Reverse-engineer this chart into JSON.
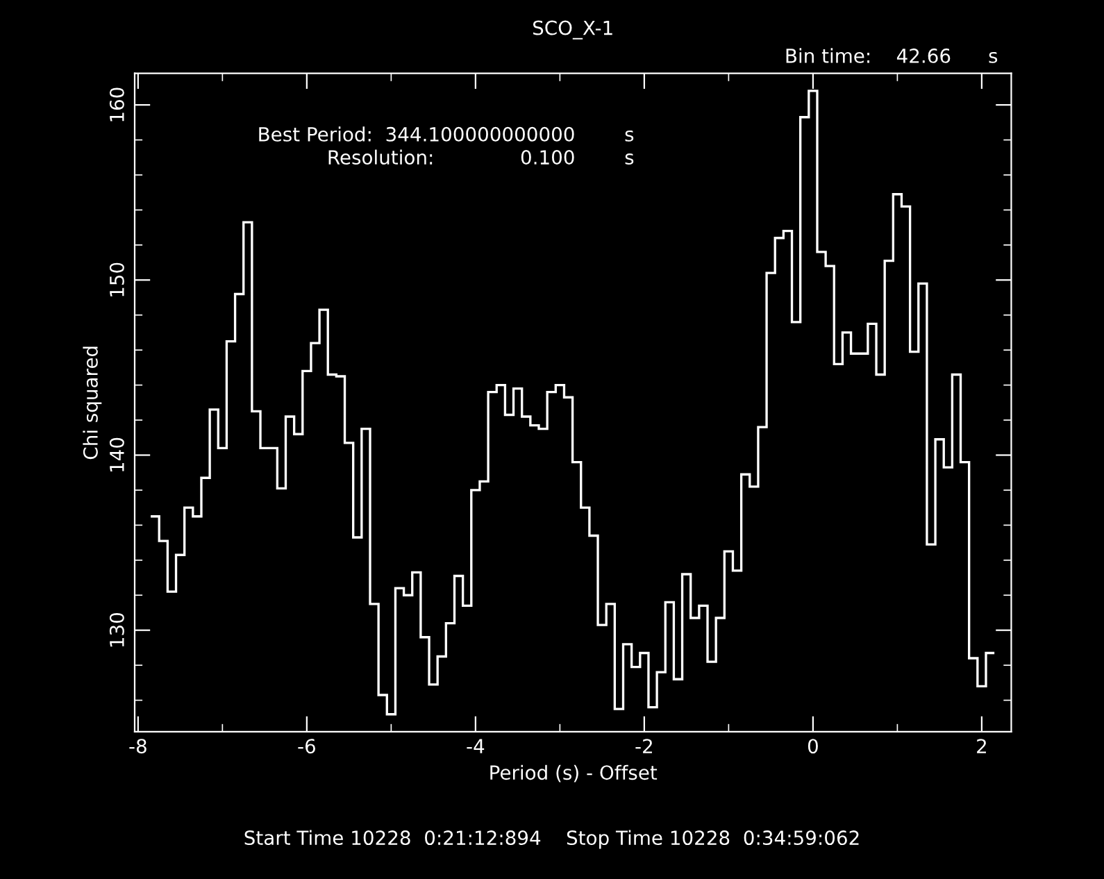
{
  "chart_data": {
    "type": "histogram",
    "title": "SCO_X-1",
    "xlabel": "Period (s) - Offset",
    "ylabel": "Chi squared",
    "annotations": [
      "Bin time:    42.66      s",
      "Best Period:  344.100000000000        s",
      "Resolution:              0.100        s",
      "Start Time 10228  0:21:12:894    Stop Time 10228  0:34:59:062"
    ],
    "bins": [
      -7.85,
      -7.75,
      -7.65,
      -7.55,
      -7.45,
      -7.35,
      -7.25,
      -7.15,
      -7.05,
      -6.95,
      -6.85,
      -6.75,
      -6.65,
      -6.55,
      -6.45,
      -6.35,
      -6.25,
      -6.15,
      -6.05,
      -5.95,
      -5.85,
      -5.75,
      -5.65,
      -5.55,
      -5.45,
      -5.35,
      -5.25,
      -5.15,
      -5.05,
      -4.95,
      -4.85,
      -4.75,
      -4.65,
      -4.55,
      -4.45,
      -4.35,
      -4.25,
      -4.15,
      -4.05,
      -3.95,
      -3.85,
      -3.75,
      -3.65,
      -3.55,
      -3.45,
      -3.35,
      -3.25,
      -3.15,
      -3.05,
      -2.95,
      -2.85,
      -2.75,
      -2.65,
      -2.55,
      -2.45,
      -2.35,
      -2.25,
      -2.15,
      -2.05,
      -1.95,
      -1.85,
      -1.75,
      -1.65,
      -1.55,
      -1.45,
      -1.35,
      -1.25,
      -1.15,
      -1.05,
      -0.95,
      -0.85,
      -0.75,
      -0.65,
      -0.55,
      -0.45,
      -0.35,
      -0.25,
      -0.15,
      -0.05,
      0.05,
      0.15,
      0.25,
      0.35,
      0.45,
      0.55,
      0.65,
      0.75,
      0.85,
      0.95,
      1.05,
      1.15,
      1.25,
      1.35,
      1.45,
      1.55,
      1.65,
      1.75,
      1.85,
      1.95,
      2.05,
      2.15
    ],
    "values": [
      136.5,
      135.1,
      132.2,
      134.3,
      137.0,
      136.5,
      138.7,
      142.6,
      140.4,
      146.5,
      149.2,
      153.3,
      142.5,
      140.4,
      140.4,
      138.1,
      142.2,
      141.2,
      144.8,
      146.4,
      148.3,
      144.6,
      144.5,
      140.7,
      135.3,
      141.5,
      131.5,
      126.3,
      125.2,
      132.4,
      132.0,
      133.3,
      129.6,
      126.9,
      128.5,
      130.4,
      133.1,
      131.4,
      138.0,
      138.5,
      143.6,
      144.0,
      142.3,
      143.8,
      142.2,
      141.7,
      141.5,
      143.6,
      144.0,
      143.3,
      139.6,
      137.0,
      135.4,
      130.3,
      131.5,
      125.5,
      129.2,
      127.9,
      128.7,
      125.6,
      127.6,
      131.6,
      127.2,
      133.2,
      130.7,
      131.4,
      128.2,
      130.7,
      134.5,
      133.4,
      138.9,
      138.2,
      141.6,
      150.4,
      152.4,
      152.8,
      147.6,
      159.3,
      160.8,
      151.6,
      150.8,
      145.2,
      147.0,
      145.8,
      145.8,
      147.5,
      144.6,
      151.1,
      154.9,
      154.2,
      145.9,
      149.8,
      134.9,
      140.9,
      139.3,
      144.6,
      139.6,
      128.4,
      126.8,
      128.7
    ],
    "color": "#ffffff",
    "xlim": [
      -8.04,
      2.35
    ],
    "ylim": [
      124.2,
      161.8
    ],
    "xticks": [
      -8,
      -6,
      -4,
      -2,
      0,
      2
    ],
    "yticks": [
      130,
      140,
      150,
      160
    ],
    "grid": false
  }
}
